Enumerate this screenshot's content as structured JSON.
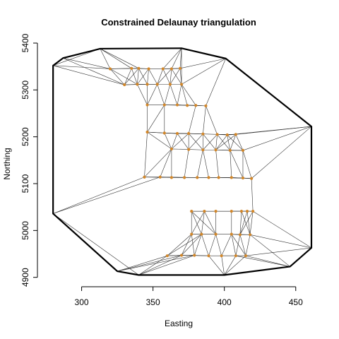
{
  "chart_data": {
    "type": "scatter",
    "title": "Constrained Delaunay triangulation",
    "xlabel": "Easting",
    "ylabel": "Northing",
    "xlim": [
      273,
      462
    ],
    "ylim": [
      4892,
      5403
    ],
    "x_ticks": [
      300,
      350,
      400,
      450
    ],
    "y_ticks": [
      4900,
      5000,
      5100,
      5200,
      5300,
      5400
    ],
    "colors": {
      "points": "#d2872a",
      "edges": "#333333",
      "hull": "#000000"
    },
    "hull": [
      [
        280,
        5352
      ],
      [
        287,
        5368
      ],
      [
        313,
        5388
      ],
      [
        370,
        5389
      ],
      [
        401,
        5367
      ],
      [
        461,
        5222
      ],
      [
        461,
        4963
      ],
      [
        446,
        4923
      ],
      [
        400,
        4905
      ],
      [
        340,
        4905
      ],
      [
        325,
        4913
      ],
      [
        280,
        5036
      ]
    ],
    "points": [
      [
        320,
        5345
      ],
      [
        335,
        5346
      ],
      [
        340,
        5346
      ],
      [
        347,
        5345
      ],
      [
        357,
        5345
      ],
      [
        363,
        5345
      ],
      [
        369,
        5346
      ],
      [
        330,
        5311
      ],
      [
        339,
        5312
      ],
      [
        346,
        5312
      ],
      [
        353,
        5312
      ],
      [
        362,
        5312
      ],
      [
        370,
        5312
      ],
      [
        346,
        5268
      ],
      [
        358,
        5268
      ],
      [
        367,
        5268
      ],
      [
        374,
        5267
      ],
      [
        380,
        5267
      ],
      [
        387,
        5266
      ],
      [
        346,
        5210
      ],
      [
        358,
        5208
      ],
      [
        367,
        5207
      ],
      [
        375,
        5207
      ],
      [
        385,
        5206
      ],
      [
        395,
        5205
      ],
      [
        402,
        5204
      ],
      [
        408,
        5205
      ],
      [
        363,
        5174
      ],
      [
        375,
        5173
      ],
      [
        385,
        5172
      ],
      [
        394,
        5172
      ],
      [
        404,
        5171
      ],
      [
        413,
        5171
      ],
      [
        344,
        5114
      ],
      [
        355,
        5114
      ],
      [
        363,
        5113
      ],
      [
        372,
        5113
      ],
      [
        381,
        5113
      ],
      [
        389,
        5113
      ],
      [
        396,
        5113
      ],
      [
        405,
        5113
      ],
      [
        413,
        5112
      ],
      [
        419,
        5111
      ],
      [
        377,
        5041
      ],
      [
        386,
        5041
      ],
      [
        394,
        5041
      ],
      [
        405,
        5041
      ],
      [
        412,
        5041
      ],
      [
        416,
        5041
      ],
      [
        420,
        5041
      ],
      [
        377,
        4992
      ],
      [
        384,
        4992
      ],
      [
        394,
        4992
      ],
      [
        405,
        4992
      ],
      [
        411,
        4991
      ],
      [
        418,
        4991
      ],
      [
        360,
        4946
      ],
      [
        370,
        4947
      ],
      [
        379,
        4947
      ],
      [
        389,
        4946
      ],
      [
        398,
        4946
      ],
      [
        408,
        4946
      ],
      [
        415,
        4946
      ]
    ]
  }
}
